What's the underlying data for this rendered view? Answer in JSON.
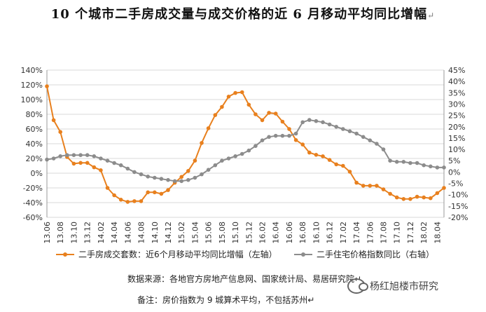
{
  "title": "10 个城市二手房成交量与成交价格的近 6 月移动平均同比增幅",
  "title_mark": "↵",
  "source_note": "数据来源：各地官方房地产信息网、国家统计局、易居研究院↵",
  "remark_note": "备注：房价指数为 9 城算术平均，不包括苏州↵",
  "watermark": "杨红旭楼市研究",
  "icon_names": [
    "wechat-icon"
  ],
  "colors": {
    "series1": "#E8801E",
    "series2": "#8C8C8C",
    "grid": "#D9D9D9"
  },
  "chart_data": {
    "type": "line",
    "x": [
      "13.06",
      "13.07",
      "13.08",
      "13.09",
      "13.10",
      "13.11",
      "13.12",
      "14.01",
      "14.02",
      "14.03",
      "14.04",
      "14.05",
      "14.06",
      "14.07",
      "14.08",
      "14.09",
      "14.10",
      "14.11",
      "14.12",
      "15.01",
      "15.02",
      "15.03",
      "15.04",
      "15.05",
      "15.06",
      "15.07",
      "15.08",
      "15.09",
      "15.10",
      "15.11",
      "15.12",
      "16.01",
      "16.02",
      "16.03",
      "16.04",
      "16.05",
      "16.06",
      "16.07",
      "16.08",
      "16.09",
      "16.10",
      "16.11",
      "16.12",
      "17.01",
      "17.02",
      "17.03",
      "17.04",
      "17.05",
      "17.06",
      "17.07",
      "17.08",
      "17.09",
      "17.10",
      "17.11",
      "17.12",
      "18.01",
      "18.02",
      "18.03",
      "18.04",
      "18.05"
    ],
    "x_tick_labels": [
      "13.06",
      "13.08",
      "13.10",
      "13.12",
      "14.02",
      "14.04",
      "14.06",
      "14.08",
      "14.10",
      "14.12",
      "15.02",
      "15.04",
      "15.06",
      "15.08",
      "15.10",
      "15.12",
      "16.02",
      "16.04",
      "16.06",
      "16.08",
      "16.10",
      "16.12",
      "17.02",
      "17.04",
      "17.06",
      "17.08",
      "17.10",
      "17.12",
      "18.02",
      "18.04"
    ],
    "left_axis": {
      "min": -60,
      "max": 140,
      "step": 20,
      "unit": "%"
    },
    "right_axis": {
      "min": -20,
      "max": 45,
      "step": 5,
      "unit": "%"
    },
    "series": [
      {
        "name": "二手房成交套数：近6个月移动平均同比增幅（左轴）",
        "axis": "left",
        "values": [
          118,
          72,
          56,
          22,
          13,
          14,
          14,
          8,
          4,
          -20,
          -30,
          -36,
          -39,
          -38,
          -38,
          -26,
          -26,
          -28,
          -23,
          -13,
          -5,
          3,
          17,
          41,
          61,
          79,
          90,
          104,
          109,
          110,
          93,
          80,
          72,
          82,
          81,
          70,
          60,
          45,
          39,
          28,
          25,
          23,
          18,
          12,
          10,
          2,
          -13,
          -17,
          -17,
          -17,
          -22,
          -28,
          -33,
          -35,
          -35,
          -32,
          -33,
          -34,
          -27,
          -20
        ]
      },
      {
        "name": "二手住宅价格指数同比（右轴）",
        "axis": "right",
        "values": [
          5.5,
          6,
          7,
          7.5,
          7.5,
          7.5,
          7.5,
          7,
          6,
          5,
          4,
          3,
          1.5,
          0,
          -1,
          -2,
          -2.5,
          -3,
          -3.5,
          -4,
          -4,
          -3.5,
          -2.5,
          -1,
          1,
          3,
          5,
          6,
          7,
          8,
          9.5,
          11.5,
          14,
          15.5,
          16,
          16,
          16,
          17,
          22,
          23,
          22.5,
          22,
          21,
          20,
          19,
          18,
          17,
          15.5,
          14,
          12.5,
          10,
          5,
          4.5,
          4.5,
          4,
          4,
          3,
          2.5,
          2,
          2
        ]
      }
    ],
    "grid": "horizontal",
    "legend_position": "bottom"
  }
}
